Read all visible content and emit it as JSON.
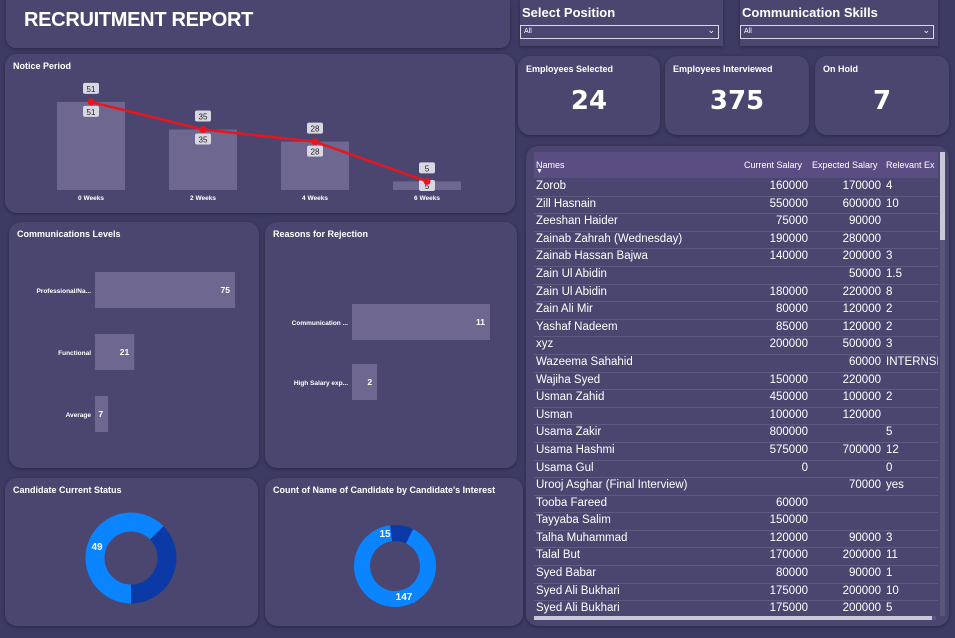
{
  "report_title": "RECRUITMENT REPORT",
  "slicers": {
    "position": {
      "label": "Select Position",
      "value": "All"
    },
    "communication": {
      "label": "Communication Skills",
      "value": "All"
    }
  },
  "cards": {
    "selected": {
      "label": "Employees Selected",
      "value": "24"
    },
    "interviewed": {
      "label": "Employees Interviewed",
      "value": "375"
    },
    "on_hold": {
      "label": "On Hold",
      "value": "7"
    }
  },
  "colors": {
    "background": "#3d3a63",
    "panel": "#4b4670",
    "bar": "#6e6890",
    "line": "#e8141e",
    "donut_dark": "#0b3aa6",
    "donut_light": "#0a84ff"
  },
  "chart_data": [
    {
      "id": "notice_period",
      "type": "bar",
      "title": "Notice Period",
      "categories": [
        "0 Weeks",
        "2 Weeks",
        "4 Weeks",
        "6 Weeks"
      ],
      "values": [
        51,
        35,
        28,
        5
      ],
      "line_series": [
        51,
        35,
        28,
        5
      ],
      "ylim": [
        0,
        55
      ]
    },
    {
      "id": "communication_levels",
      "type": "bar",
      "orientation": "horizontal",
      "title": "Communications Levels",
      "categories": [
        "Professional/Na...",
        "Functional",
        "Average"
      ],
      "values": [
        75,
        21,
        7
      ],
      "xlim": [
        0,
        75
      ]
    },
    {
      "id": "rejection_reasons",
      "type": "bar",
      "orientation": "horizontal",
      "title": "Reasons for Rejection",
      "categories": [
        "Communication ...",
        "High Salary exp..."
      ],
      "values": [
        11,
        2
      ],
      "xlim": [
        0,
        11
      ]
    },
    {
      "id": "candidate_status",
      "type": "pie",
      "donut": true,
      "title": "Candidate Current Status",
      "values": [
        82,
        49
      ]
    },
    {
      "id": "candidate_interest",
      "type": "pie",
      "donut": true,
      "title": "Count of Name of Candidate by Candidate's Interest",
      "values": [
        147,
        15
      ]
    }
  ],
  "table": {
    "columns": [
      "Names",
      "Current Salary",
      "Expected Salary",
      "Relevant Ex"
    ],
    "rows": [
      [
        "Zorob",
        "160000",
        "170000",
        "4"
      ],
      [
        "Zill Hasnain",
        "550000",
        "600000",
        "10"
      ],
      [
        "Zeeshan Haider",
        "75000",
        "90000",
        ""
      ],
      [
        "Zainab Zahrah (Wednesday)",
        "190000",
        "280000",
        ""
      ],
      [
        "Zainab Hassan Bajwa",
        "140000",
        "200000",
        "3"
      ],
      [
        "Zain Ul Abidin",
        "",
        "50000",
        "1.5"
      ],
      [
        "Zain Ul Abidin",
        "180000",
        "220000",
        "8"
      ],
      [
        "Zain Ali Mir",
        "80000",
        "120000",
        "2"
      ],
      [
        "Yashaf Nadeem",
        "85000",
        "120000",
        "2"
      ],
      [
        "xyz",
        "200000",
        "500000",
        "3"
      ],
      [
        "Wazeema Sahahid",
        "",
        "60000",
        "INTERNSH"
      ],
      [
        "Wajiha Syed",
        "150000",
        "220000",
        ""
      ],
      [
        "Usman Zahid",
        "450000",
        "100000",
        "2"
      ],
      [
        "Usman",
        "100000",
        "120000",
        ""
      ],
      [
        "Usama Zakir",
        "800000",
        "",
        "5"
      ],
      [
        "Usama Hashmi",
        "575000",
        "700000",
        "12"
      ],
      [
        "Usama Gul",
        "0",
        "",
        "0"
      ],
      [
        "Urooj Asghar (Final Interview)",
        "",
        "70000",
        "yes"
      ],
      [
        "Tooba Fareed",
        "60000",
        "",
        ""
      ],
      [
        "Tayyaba Salim",
        "150000",
        "",
        ""
      ],
      [
        "Talha Muhammad",
        "120000",
        "90000",
        "3"
      ],
      [
        "Talal But",
        "170000",
        "200000",
        "11"
      ],
      [
        "Syed Babar",
        "80000",
        "90000",
        "1"
      ],
      [
        "Syed Ali Bukhari",
        "175000",
        "200000",
        "10"
      ],
      [
        "Syed Ali Bukhari",
        "175000",
        "200000",
        "5"
      ]
    ]
  }
}
